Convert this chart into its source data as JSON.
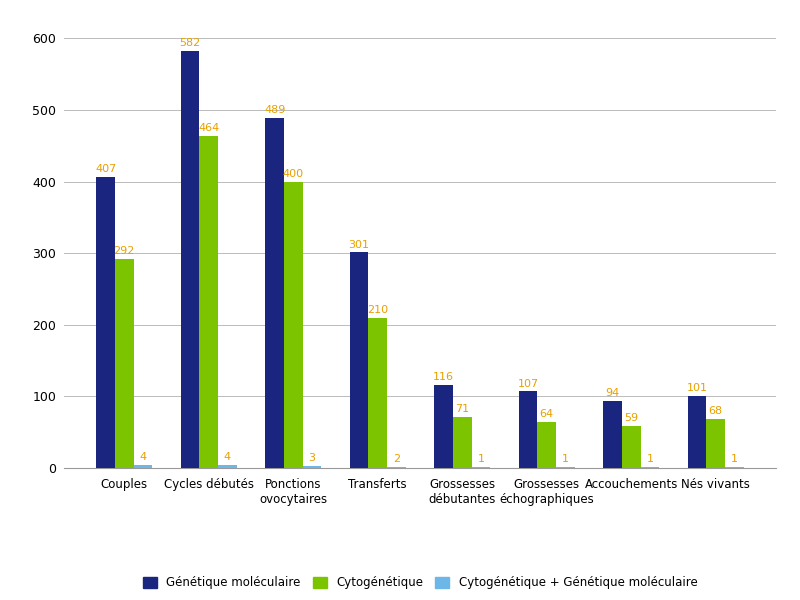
{
  "categories": [
    "Couples",
    "Cycles débutés",
    "Ponctions\novocytaires",
    "Transferts",
    "Grossesses\ndébutantes",
    "Grossesses\néchographiques",
    "Accouchements",
    "Nés vivants"
  ],
  "series": {
    "Génétique moléculaire": [
      407,
      582,
      489,
      301,
      116,
      107,
      94,
      101
    ],
    "Cytogénétique": [
      292,
      464,
      400,
      210,
      71,
      64,
      59,
      68
    ],
    "Cytogénétique + Génétique moléculaire": [
      4,
      4,
      3,
      2,
      1,
      1,
      1,
      1
    ]
  },
  "bar_colors": {
    "Génétique moléculaire": "#1A2580",
    "Cytogénétique": "#7DC400",
    "Cytogénétique + Génétique moléculaire": "#6DB6E8"
  },
  "label_color": "#E8A000",
  "ylim": [
    0,
    620
  ],
  "yticks": [
    0,
    100,
    200,
    300,
    400,
    500,
    600
  ],
  "bar_width": 0.22,
  "figsize": [
    8.0,
    6.0
  ],
  "dpi": 100,
  "legend_labels": [
    "Génétique moléculaire",
    "Cytogénétique",
    "Cytogénétique + Génétique moléculaire"
  ]
}
